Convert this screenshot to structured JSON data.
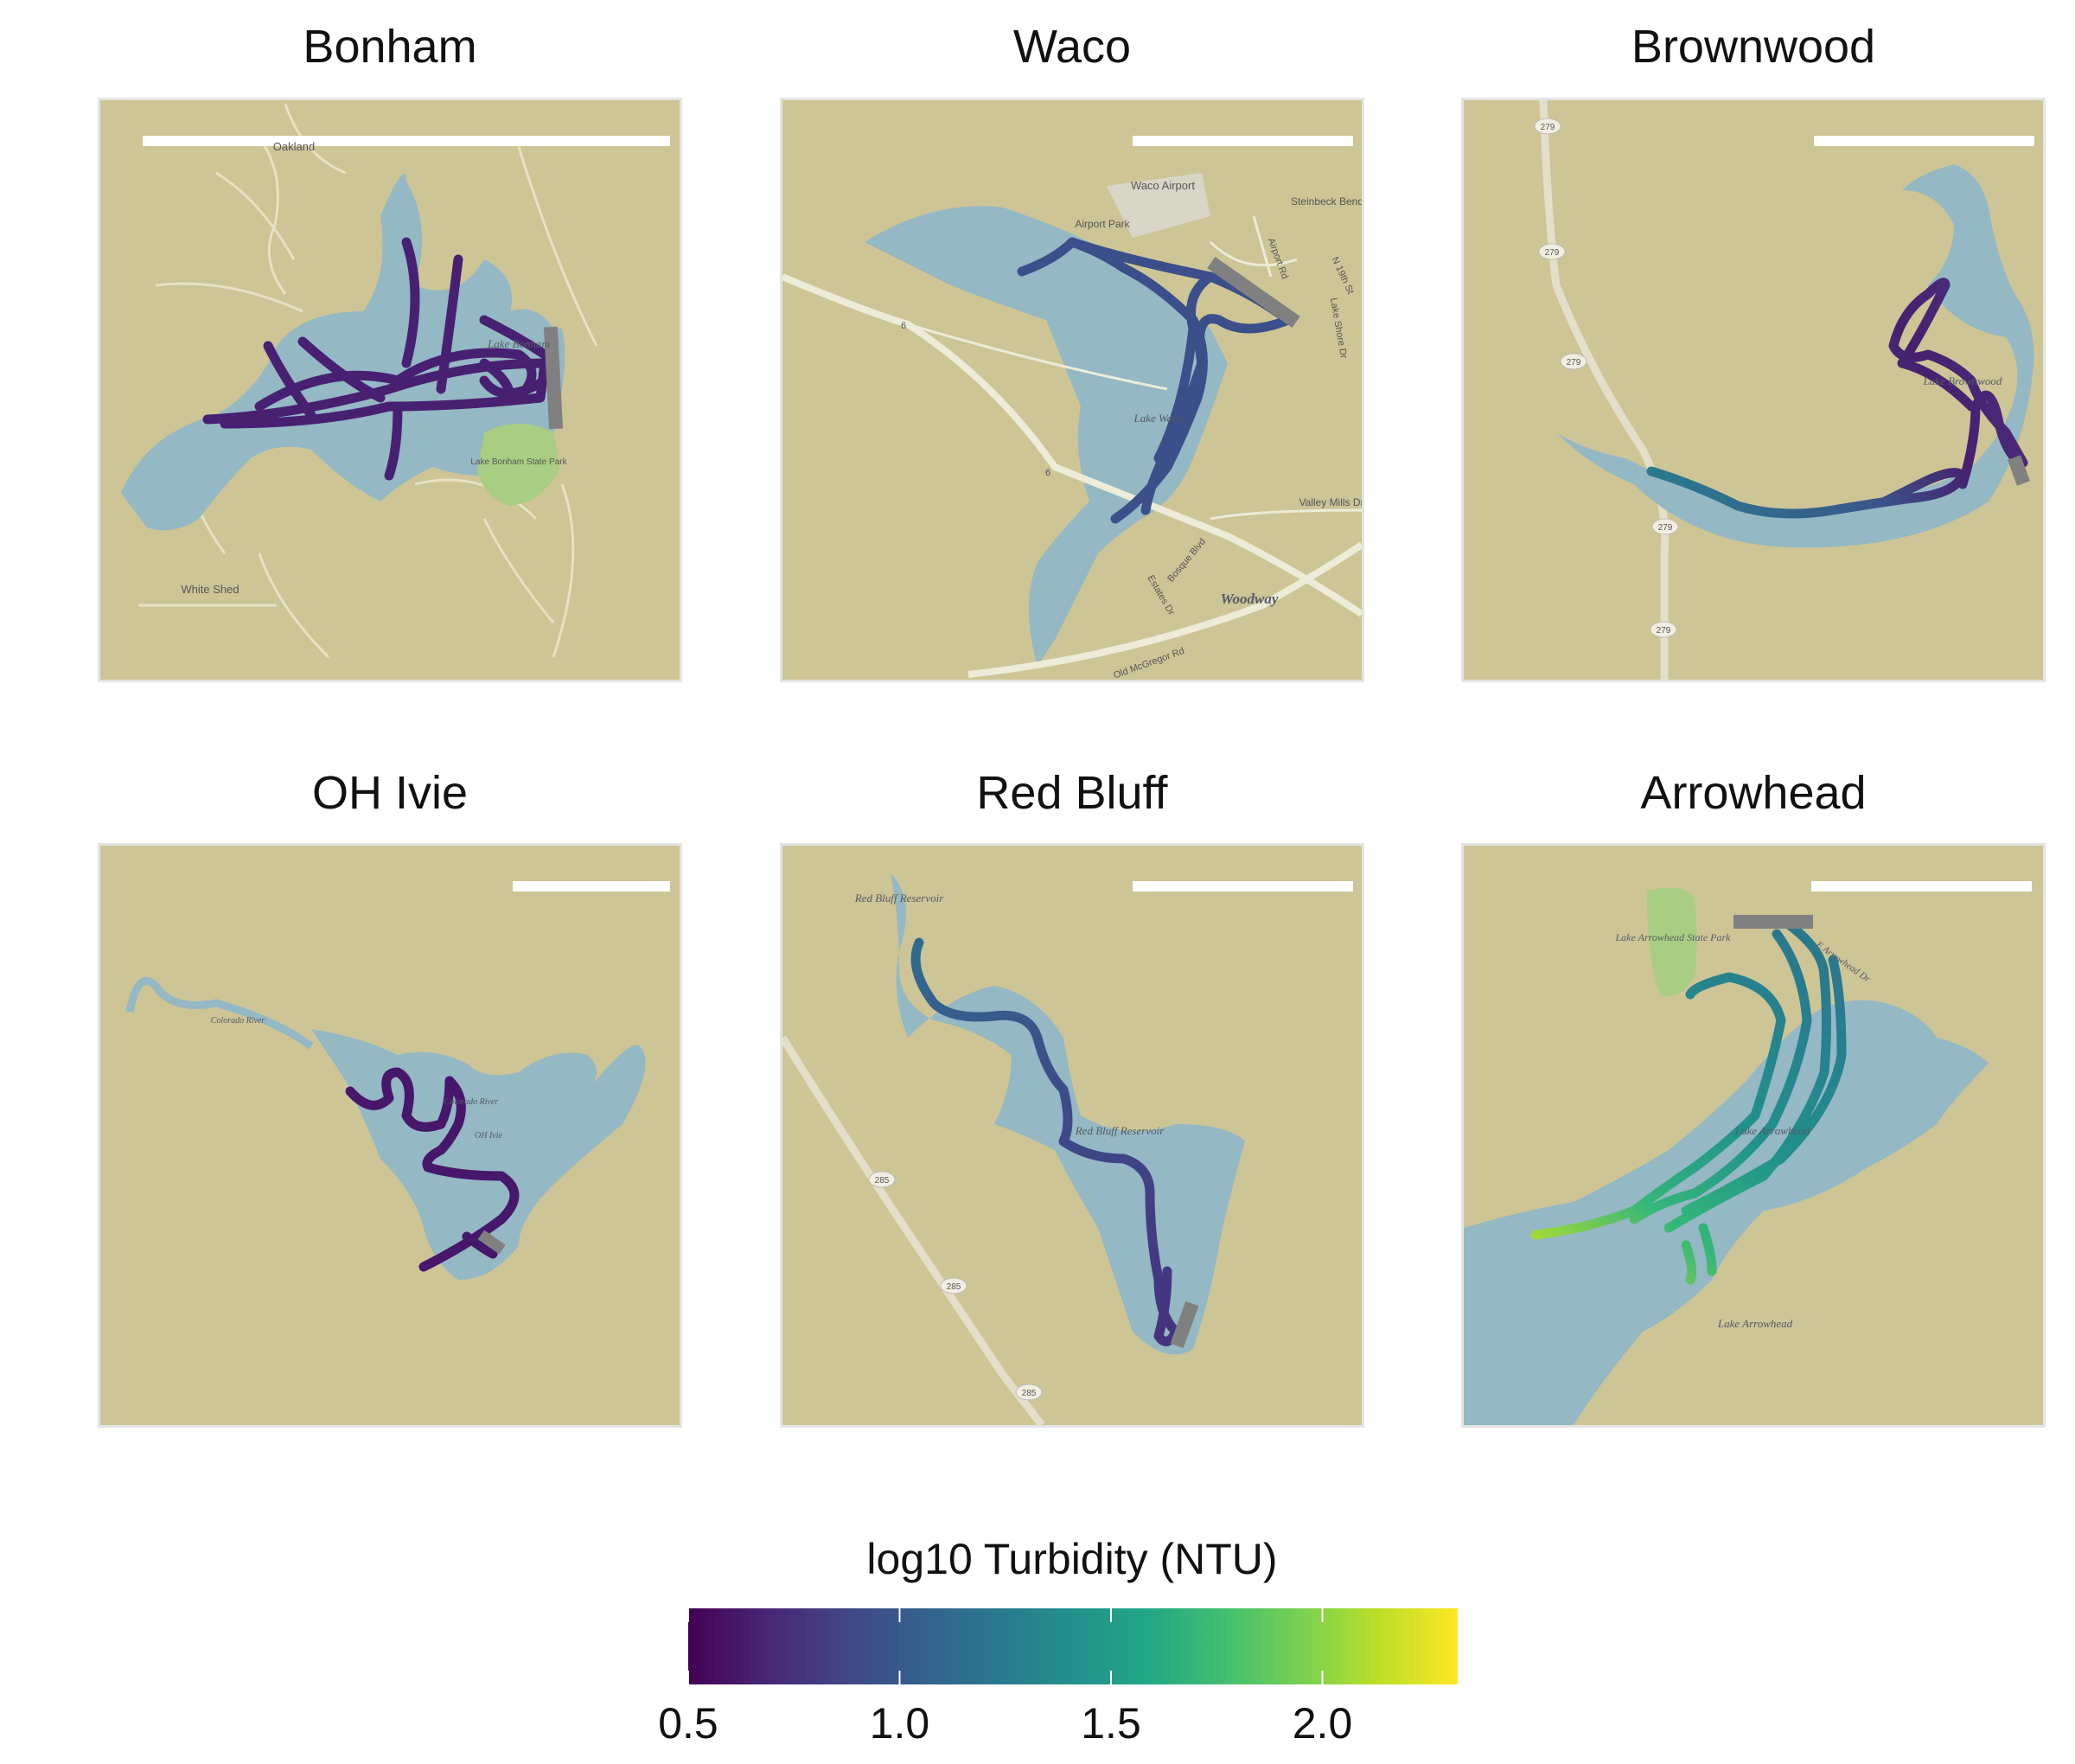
{
  "figure": {
    "panels": [
      {
        "title": "Bonham",
        "labels": [
          "Oakland",
          "Lake Bonham",
          "Lake Bonham State Park",
          "White Shed"
        ]
      },
      {
        "title": "Waco",
        "labels": [
          "Waco Airport",
          "Airport Park",
          "Steinbeck Bend",
          "Airport Rd",
          "Lake Shore Dr",
          "N 19th St",
          "Lake Waco",
          "6",
          "6",
          "Valley Mills Dr",
          "Bosque Blvd",
          "Estates Dr",
          "Woodway",
          "Old McGregor Rd"
        ]
      },
      {
        "title": "Brownwood",
        "labels": [
          "279",
          "279",
          "279",
          "279",
          "279",
          "Lake Brownwood"
        ]
      },
      {
        "title": "OH Ivie",
        "labels": [
          "Colorado River",
          "Colorado River",
          "OH Ivie"
        ]
      },
      {
        "title": "Red Bluff",
        "labels": [
          "Red Bluff Reservoir",
          "Red Bluff Reservoir",
          "285",
          "285",
          "285"
        ]
      },
      {
        "title": "Arrowhead",
        "labels": [
          "Lake Arrowhead State Park",
          "E Arrowhead Dr",
          "Lake Arrowhead",
          "Lake Arrowhead"
        ]
      }
    ],
    "colors": {
      "land": "#cdc596",
      "water": "#94b8c4",
      "park": "#a9cd82",
      "road": "#ececd8",
      "dam": "#808080",
      "scalebar": "#ffffff",
      "panel_border": "#e4e4e4"
    },
    "legend": {
      "title": "log10 Turbidity (NTU)",
      "ticks": [
        "0.5",
        "1.0",
        "1.5",
        "2.0"
      ],
      "tick_values": [
        0.5,
        1.0,
        1.5,
        2.0
      ],
      "range": [
        0.5,
        2.32
      ],
      "colorscale": "viridis"
    },
    "tracks": [
      {
        "panel": "Bonham",
        "turbidity": [
          0.72,
          0.74
        ]
      },
      {
        "panel": "Waco",
        "turbidity": [
          0.85,
          0.95
        ]
      },
      {
        "panel": "Brownwood",
        "turbidity": [
          0.6,
          1.3
        ]
      },
      {
        "panel": "OH Ivie",
        "turbidity": [
          0.55,
          0.62
        ]
      },
      {
        "panel": "Red Bluff",
        "turbidity": [
          0.7,
          1.15
        ]
      },
      {
        "panel": "Arrowhead",
        "turbidity": [
          1.2,
          2.05
        ]
      }
    ]
  }
}
